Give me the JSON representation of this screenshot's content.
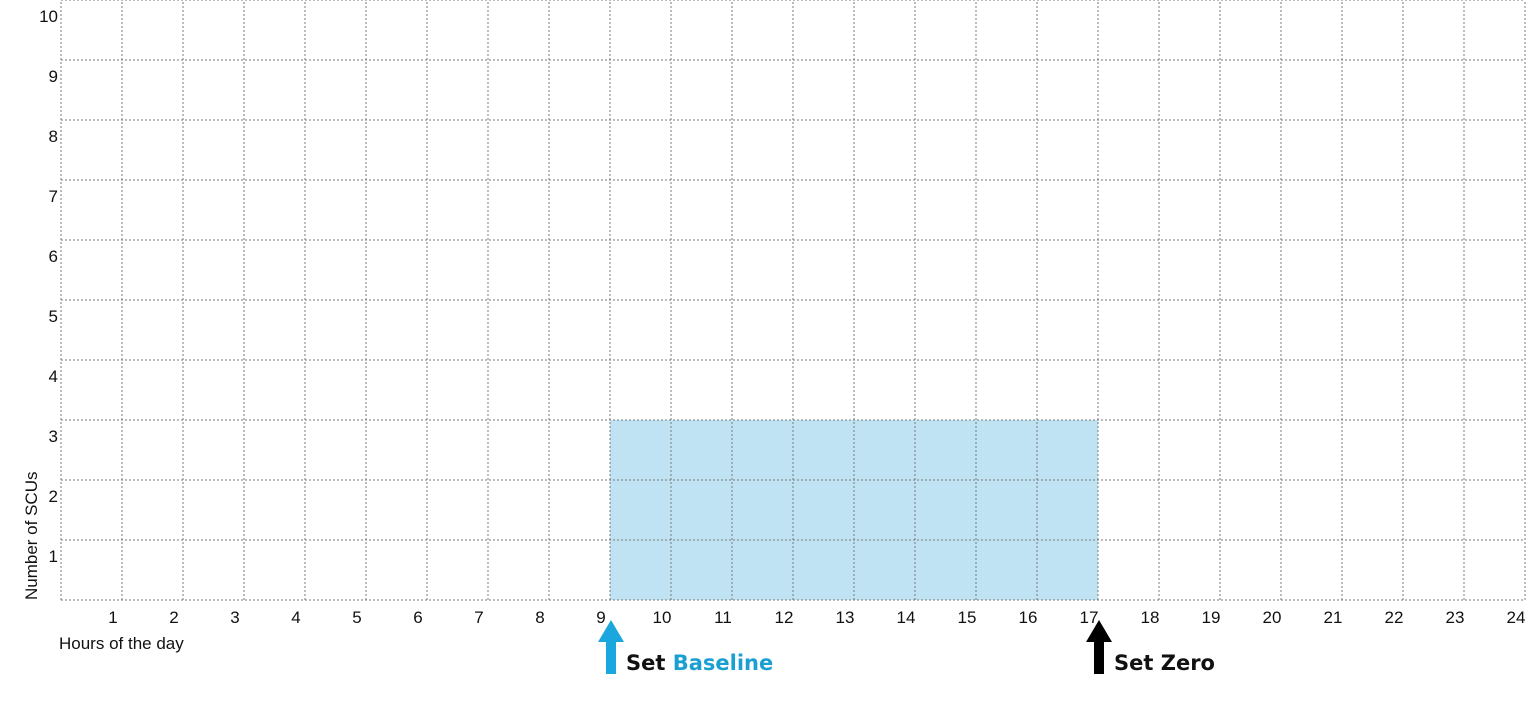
{
  "chart_data": {
    "type": "area",
    "xlabel": "Hours of the day",
    "ylabel": "Number of SCUs",
    "x_ticks": [
      "1",
      "2",
      "3",
      "4",
      "5",
      "6",
      "7",
      "8",
      "9",
      "10",
      "11",
      "12",
      "13",
      "14",
      "15",
      "16",
      "17",
      "18",
      "19",
      "20",
      "21",
      "22",
      "23",
      "24"
    ],
    "y_ticks": [
      "1",
      "2",
      "3",
      "4",
      "5",
      "6",
      "7",
      "8",
      "9",
      "10"
    ],
    "xlim": [
      0,
      24
    ],
    "ylim": [
      0,
      10
    ],
    "grid": true,
    "grid_style": "dotted",
    "shaded_region": {
      "x_start": 9,
      "x_end": 17,
      "y_value": 3,
      "color": "#bfe3f3"
    },
    "annotations": [
      {
        "x": 9,
        "prefix": "Set",
        "highlight": "Baseline",
        "arrow_color": "#1aa7dd",
        "highlight_color": "#1a9fd3"
      },
      {
        "x": 17,
        "prefix": "Set",
        "highlight": "Zero",
        "arrow_color": "#000000",
        "highlight_color": "#111111"
      }
    ]
  }
}
